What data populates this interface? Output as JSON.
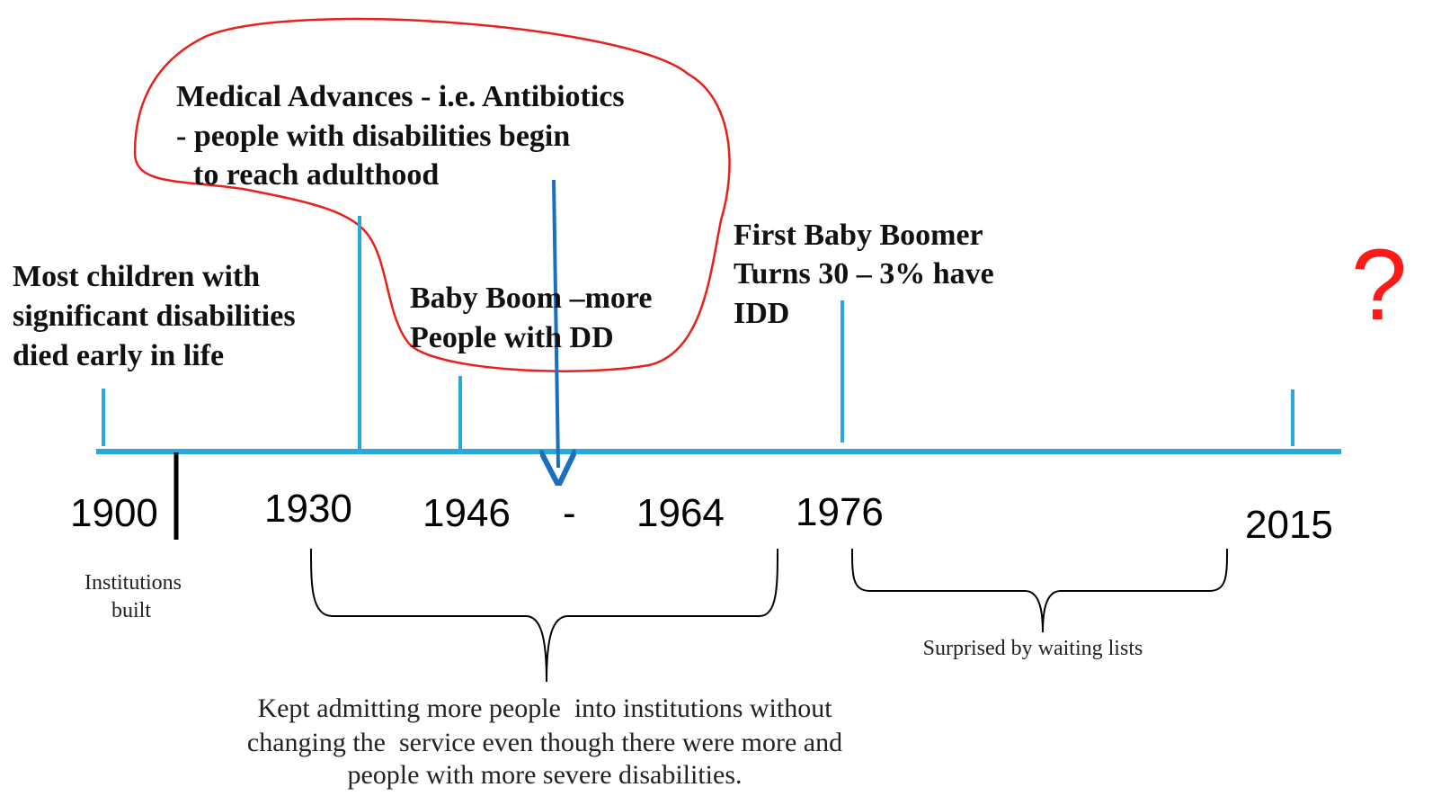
{
  "events": [
    {
      "lines": [
        "Medical Advances - i.e. Antibiotics",
        "- people with disabilities begin",
        "to reach adulthood"
      ]
    },
    {
      "lines": [
        "Most children with",
        "significant disabilities",
        "died early in life"
      ]
    },
    {
      "lines": [
        "Baby Boom –more",
        "People with DD"
      ]
    },
    {
      "lines": [
        "First Baby Boomer",
        "Turns 30 – 3% have",
        "IDD"
      ]
    }
  ],
  "question": "?",
  "years": [
    "1900",
    "1930",
    "1946",
    "-",
    "1964",
    "1976",
    "2015"
  ],
  "notes": [
    {
      "lines": [
        "Institutions",
        "built"
      ]
    },
    {
      "lines": [
        "Surprised by waiting lists"
      ]
    },
    {
      "lines": [
        "Kept admitting more people  into institutions without",
        "changing the  service even though there were more and",
        "people with more severe disabilities."
      ]
    }
  ]
}
